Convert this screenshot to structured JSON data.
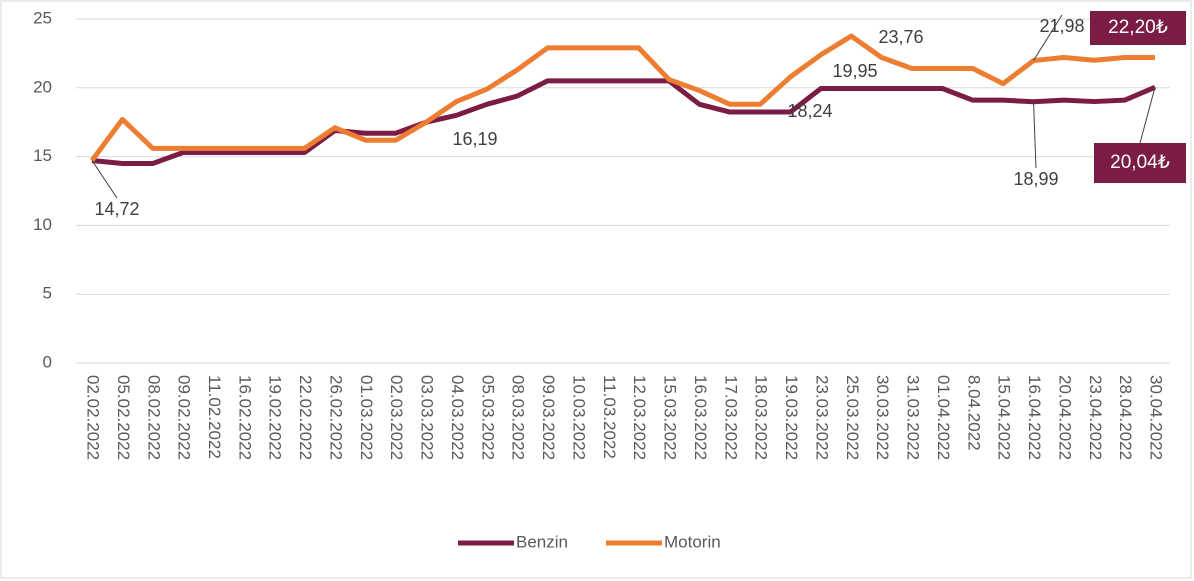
{
  "chart_data": {
    "type": "line",
    "categories": [
      "02.02.2022",
      "05.02.2022",
      "08.02.2022",
      "09.02.2022",
      "11.02.2022",
      "16.02.2022",
      "19.02.2022",
      "22.02.2022",
      "26.02.2022",
      "01.03.2022",
      "02.03.2022",
      "03.03.2022",
      "04.03.2022",
      "05.03.2022",
      "08.03.2022",
      "09.03.2022",
      "10.03.2022",
      "11.03.2022",
      "12.03.2022",
      "15.03.2022",
      "16.03.2022",
      "17.03.2022",
      "18.03.2022",
      "19.03.2022",
      "23.03.2022",
      "25.03.2022",
      "30.03.2022",
      "31.03.2022",
      "01.04.2022",
      "8.04.2022",
      "15.04.2022",
      "16.04.2022",
      "20.04.2022",
      "23.04.2022",
      "28.04.2022",
      "30.04.2022"
    ],
    "series": [
      {
        "name": "Benzin",
        "color": "#7b1c45",
        "values": [
          14.72,
          14.5,
          14.5,
          15.3,
          15.3,
          15.3,
          15.3,
          15.3,
          16.9,
          16.7,
          16.7,
          17.5,
          18.0,
          18.8,
          19.4,
          20.5,
          20.5,
          20.5,
          20.5,
          20.5,
          18.8,
          18.24,
          18.24,
          18.24,
          19.95,
          19.95,
          19.95,
          19.95,
          19.95,
          19.1,
          19.1,
          18.99,
          19.1,
          19.0,
          19.1,
          20.04
        ],
        "value_labels": [
          "14,72",
          null,
          null,
          null,
          null,
          null,
          null,
          null,
          null,
          null,
          null,
          null,
          null,
          null,
          null,
          null,
          null,
          null,
          null,
          null,
          null,
          null,
          null,
          "18,24",
          "19,95",
          null,
          null,
          null,
          null,
          null,
          null,
          "18,99",
          null,
          null,
          null,
          "20,04₺"
        ]
      },
      {
        "name": "Motorin",
        "color": "#ed7d31",
        "values": [
          14.72,
          17.7,
          15.6,
          15.6,
          15.6,
          15.6,
          15.6,
          15.6,
          17.1,
          16.19,
          16.19,
          17.5,
          19.0,
          19.9,
          21.3,
          22.9,
          22.9,
          22.9,
          22.9,
          20.6,
          19.8,
          18.8,
          18.8,
          20.8,
          22.4,
          23.76,
          22.2,
          21.4,
          21.4,
          21.4,
          20.3,
          21.98,
          22.2,
          22.0,
          22.2,
          22.2
        ],
        "value_labels": [
          null,
          null,
          null,
          null,
          null,
          null,
          null,
          null,
          null,
          null,
          "16,19",
          null,
          null,
          null,
          null,
          null,
          null,
          null,
          null,
          null,
          null,
          null,
          null,
          null,
          null,
          "23,76",
          null,
          null,
          null,
          null,
          null,
          "21,98",
          null,
          null,
          null,
          "22,20₺"
        ]
      }
    ],
    "ylim": [
      0,
      25
    ],
    "yticks": [
      0,
      5,
      10,
      15,
      20,
      25
    ],
    "grid": true,
    "legend": "bottom"
  }
}
